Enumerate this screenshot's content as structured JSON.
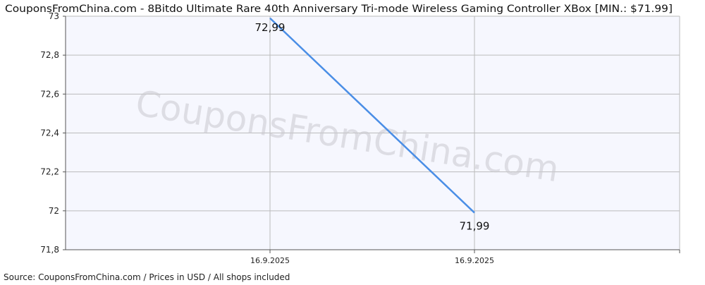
{
  "chart_data": {
    "type": "line",
    "title": "CouponsFromChina.com - 8Bitdo Ultimate Rare 40th Anniversary Tri-mode Wireless Gaming Controller XBox [MIN.: $71.99]",
    "watermark": "CouponsFromChina.com",
    "source": "Source:  CouponsFromChina.com / Prices in USD / All shops included",
    "x": [
      "16.9.2025",
      "16.9.2025"
    ],
    "series": [
      {
        "values": [
          72.99,
          71.99
        ],
        "point_labels": [
          "72,99",
          "71,99"
        ],
        "color": "#4a8ee6"
      }
    ],
    "xlabel": "",
    "ylabel": "",
    "ylim": [
      71.8,
      73
    ],
    "yticks": [
      71.8,
      72,
      72.2,
      72.4,
      72.6,
      72.8,
      73
    ],
    "ytick_labels": [
      "71,8",
      "72",
      "72,2",
      "72,4",
      "72,6",
      "72,8",
      "73"
    ],
    "grid": true,
    "plot_background": "#f6f7fe",
    "grid_color": "#bbbbbb"
  }
}
